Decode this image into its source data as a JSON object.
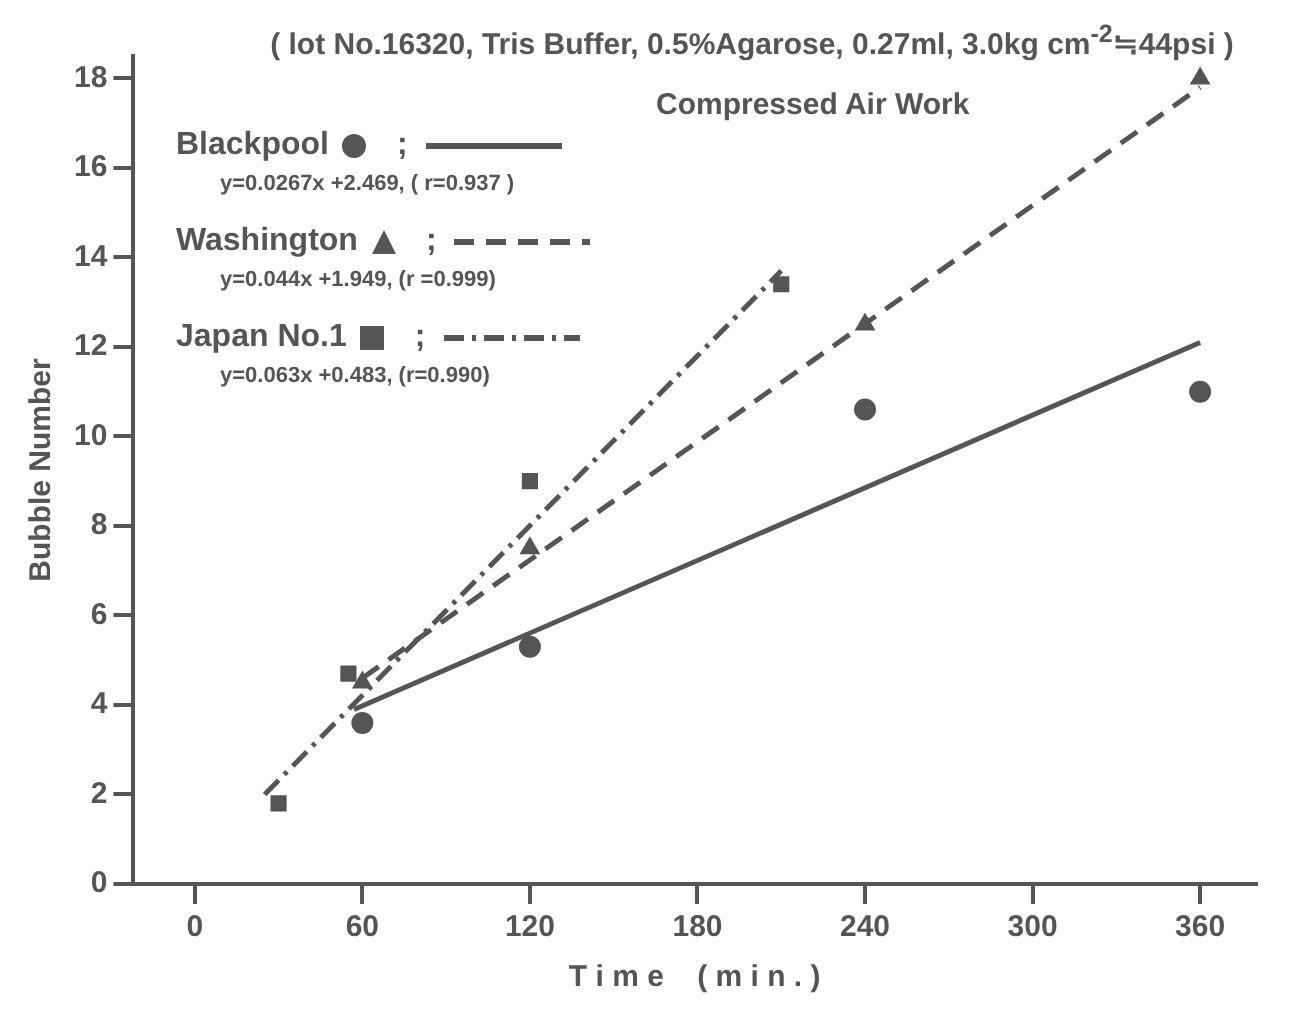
{
  "chart_data": {
    "type": "scatter",
    "title": "( lot No.16320, Tris Buffer, 0.5%Agarose, 0.27ml, 3.0kg cm$^{-2}$≒44psi )",
    "subtitle": "Compressed Air Work",
    "xlabel": "T i m e    ( m i n . )",
    "ylabel": "Bubble Number",
    "xlim": [
      -22,
      380
    ],
    "ylim": [
      0,
      18.5
    ],
    "xticks": [
      0,
      60,
      120,
      180,
      240,
      300,
      360
    ],
    "yticks": [
      0,
      2,
      4,
      6,
      8,
      10,
      12,
      14,
      16,
      18
    ],
    "grid": false,
    "legend": "top left",
    "annotations": [
      "y=0.0267x +2.469, ( r=0.937 )",
      "y=0.044x +1.949, (r =0.999)",
      "y=0.063x +0.483, (r=0.990)"
    ],
    "series": [
      {
        "name": "Blackpool",
        "marker": "circle",
        "color": "#555555",
        "x": [
          60,
          120,
          240,
          360
        ],
        "values": [
          3.6,
          5.3,
          10.6,
          11.0
        ]
      },
      {
        "name": "Washington",
        "marker": "triangle",
        "color": "#555555",
        "x": [
          60,
          120,
          240,
          360
        ],
        "values": [
          4.5,
          7.5,
          12.5,
          18.0
        ]
      },
      {
        "name": "Japan No.1",
        "marker": "square",
        "color": "#555555",
        "x": [
          30,
          55,
          120,
          210
        ],
        "values": [
          1.8,
          4.7,
          9.0,
          13.4
        ]
      },
      {
        "name": ";",
        "type": "line",
        "marker": "none",
        "line_style": "solid",
        "color": "#555555",
        "x": [
          57,
          360
        ],
        "values": [
          3.9,
          12.1
        ]
      },
      {
        "name": ";",
        "type": "line",
        "marker": "none",
        "line_style": "dashed",
        "color": "#555555",
        "x": [
          60,
          360
        ],
        "values": [
          4.6,
          17.8
        ]
      },
      {
        "name": ";",
        "type": "line",
        "marker": "none",
        "line_style": "dashdot",
        "color": "#555555",
        "x": [
          25,
          210
        ],
        "values": [
          2.0,
          13.7
        ]
      }
    ]
  }
}
